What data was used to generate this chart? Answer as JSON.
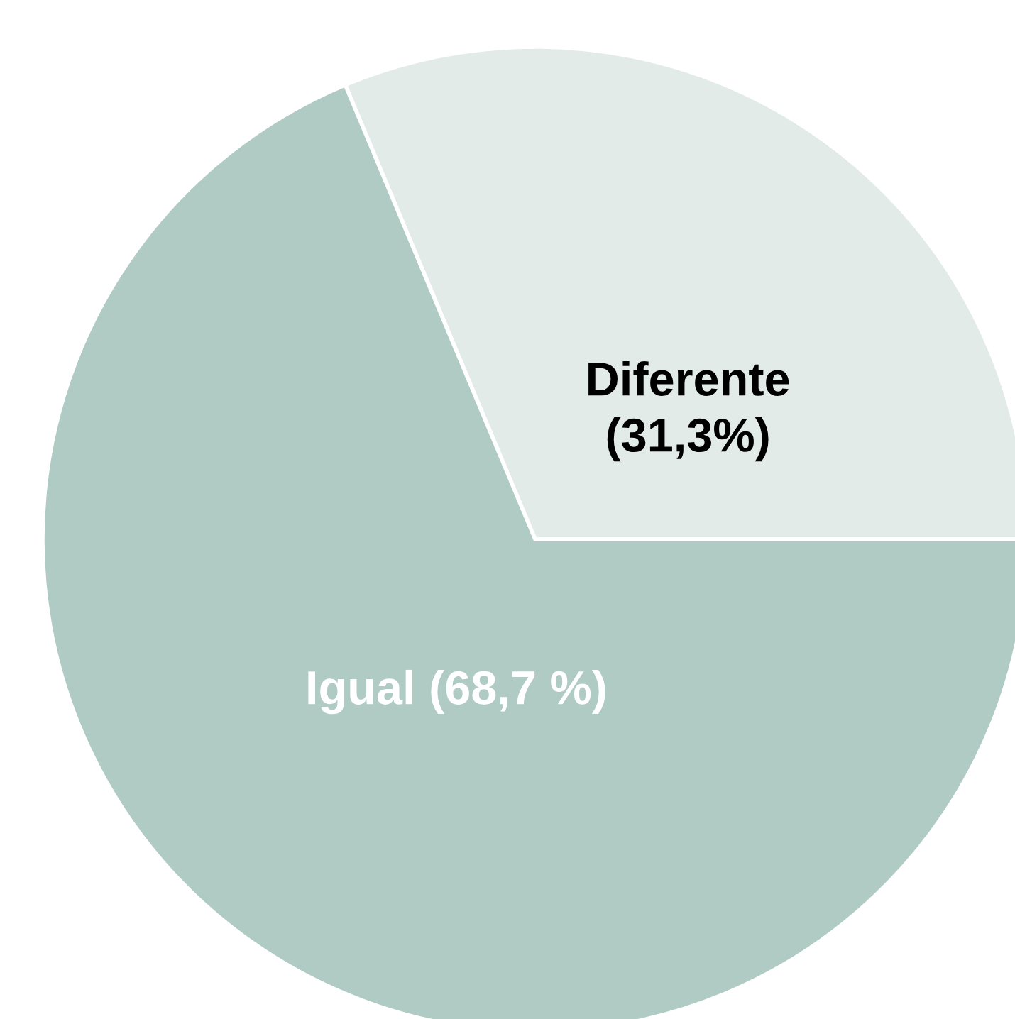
{
  "chart_data": {
    "type": "pie",
    "categories": [
      "Diferente",
      "Igual"
    ],
    "values": [
      31.3,
      68.7
    ],
    "value_labels": [
      "(31,3%)",
      "(68,7 %)"
    ],
    "colors": [
      "#e2ebe8",
      "#b0cbc4"
    ]
  }
}
